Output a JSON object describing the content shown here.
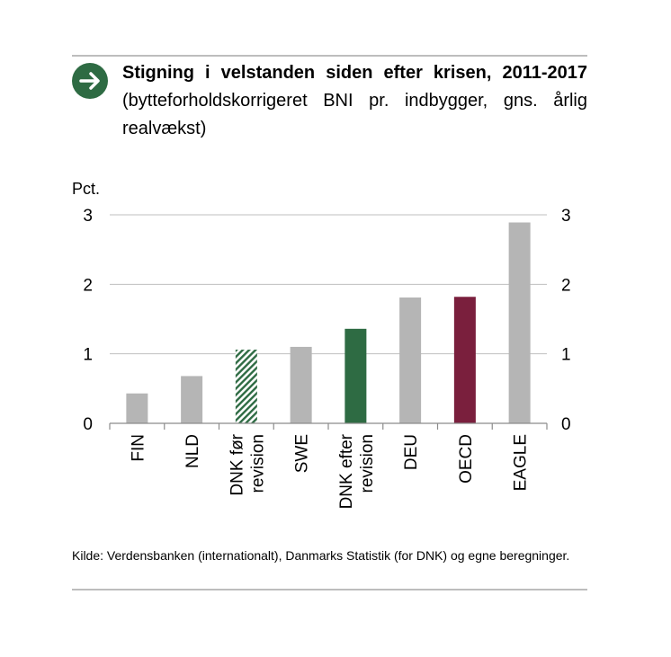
{
  "title": {
    "bold_text": "Stigning i velstanden siden efter krisen, 2011-2017",
    "normal_text": "(bytteforholdskorrigeret BNI pr. indbygger, gns. årlig realvækst)",
    "icon": "arrow-right-icon"
  },
  "source": "Kilde: Verdensbanken (internationalt), Danmarks Statistik (for DNK) og egne beregninger.",
  "colors": {
    "gray": "#b5b5b5",
    "green": "#2e6b43",
    "maroon": "#7a1f3d",
    "hatch": "#2e6b43"
  },
  "chart_data": {
    "type": "bar",
    "ylabel": "Pct.",
    "ylim": [
      0,
      3
    ],
    "yticks": [
      "0",
      "1",
      "2",
      "3"
    ],
    "y2ticks": [
      "0",
      "1",
      "2",
      "3"
    ],
    "categories": [
      [
        "FIN"
      ],
      [
        "NLD"
      ],
      [
        "DNK før",
        "revision"
      ],
      [
        "SWE"
      ],
      [
        "DNK efter",
        "revision"
      ],
      [
        "DEU"
      ],
      [
        "OECD"
      ],
      [
        "EAGLE"
      ]
    ],
    "values": [
      0.43,
      0.68,
      1.06,
      1.1,
      1.36,
      1.81,
      1.82,
      2.89
    ],
    "bar_styles": [
      "gray",
      "gray",
      "hatch",
      "gray",
      "green",
      "gray",
      "maroon",
      "gray"
    ]
  }
}
